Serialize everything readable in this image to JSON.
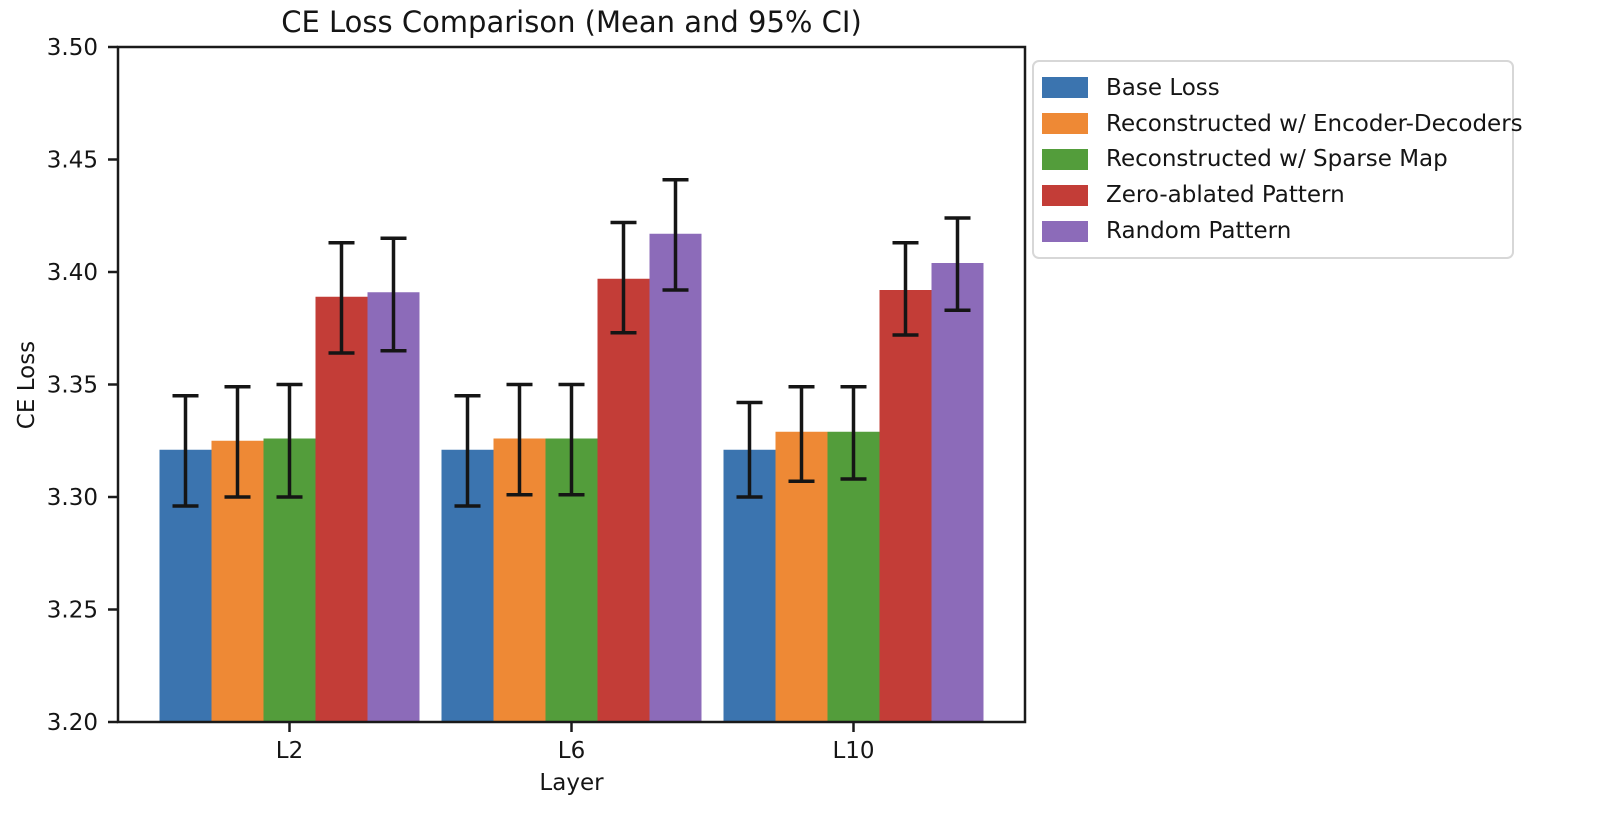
{
  "chart_data": {
    "type": "bar",
    "title": "CE Loss Comparison (Mean and 95% CI)",
    "xlabel": "Layer",
    "ylabel": "CE Loss",
    "categories": [
      "L2",
      "L6",
      "L10"
    ],
    "ylim": [
      3.2,
      3.5
    ],
    "yticks": [
      3.5,
      3.45,
      3.4,
      3.35,
      3.3,
      3.25,
      3.2
    ],
    "ytick_labels": [
      "3.50",
      "3.45",
      "3.40",
      "3.35",
      "3.30",
      "3.25",
      "3.20"
    ],
    "grid": false,
    "legend_position": "outside-upper-right",
    "error_bar_color": "#151515",
    "axis_color": "#1a1a1a",
    "series": [
      {
        "name": "Base Loss",
        "color": "#3b74af",
        "values": [
          3.321,
          3.321,
          3.321
        ],
        "ci_low": [
          3.296,
          3.296,
          3.3
        ],
        "ci_high": [
          3.345,
          3.345,
          3.342
        ]
      },
      {
        "name": "Reconstructed w/ Encoder-Decoders",
        "color": "#ee8935",
        "values": [
          3.325,
          3.326,
          3.329
        ],
        "ci_low": [
          3.3,
          3.301,
          3.307
        ],
        "ci_high": [
          3.349,
          3.35,
          3.349
        ]
      },
      {
        "name": "Reconstructed w/ Sparse Map",
        "color": "#539d3b",
        "values": [
          3.326,
          3.326,
          3.329
        ],
        "ci_low": [
          3.3,
          3.301,
          3.308
        ],
        "ci_high": [
          3.35,
          3.35,
          3.349
        ]
      },
      {
        "name": "Zero-ablated Pattern",
        "color": "#c33d37",
        "values": [
          3.389,
          3.397,
          3.392
        ],
        "ci_low": [
          3.364,
          3.373,
          3.372
        ],
        "ci_high": [
          3.413,
          3.422,
          3.413
        ]
      },
      {
        "name": "Random Pattern",
        "color": "#8c6bb9",
        "values": [
          3.391,
          3.417,
          3.404
        ],
        "ci_low": [
          3.365,
          3.392,
          3.383
        ],
        "ci_high": [
          3.415,
          3.441,
          3.424
        ]
      }
    ]
  }
}
